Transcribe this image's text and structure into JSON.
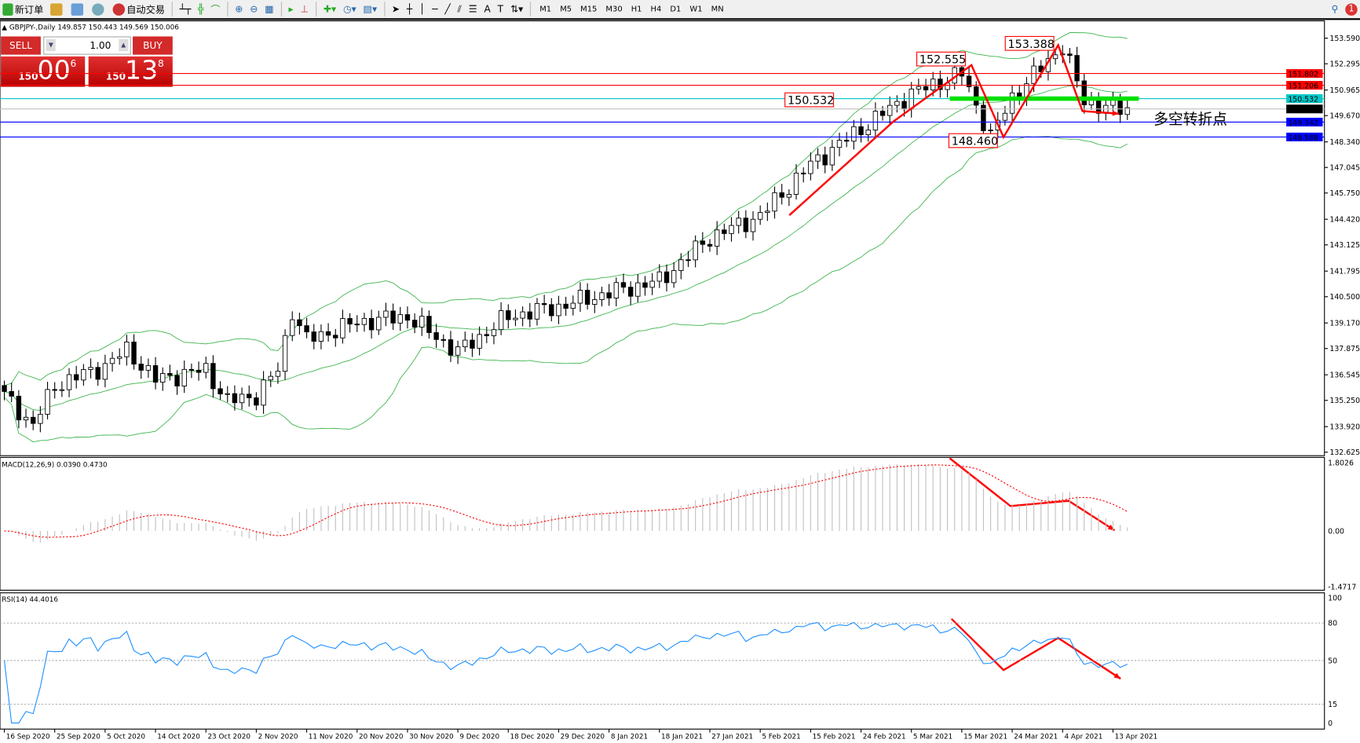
{
  "toolbar": {
    "new_order": "新订单",
    "auto_trading": "自动交易",
    "timeframes": [
      "M1",
      "M5",
      "M15",
      "M30",
      "H1",
      "H4",
      "D1",
      "W1",
      "MN"
    ],
    "notification_count": "1"
  },
  "chart": {
    "title": "GBPJPY-,Daily  149.857 150.443 149.569 150.006",
    "symbol": "GBPJPY-",
    "period": "Daily",
    "ohlc": {
      "open": "149.857",
      "high": "150.443",
      "low": "149.569",
      "close": "150.006"
    }
  },
  "trade_panel": {
    "sell_label": "SELL",
    "buy_label": "BUY",
    "lot": "1.00",
    "sell_price": {
      "big": "150",
      "main": "00",
      "pip": "6"
    },
    "buy_price": {
      "big": "150",
      "main": "13",
      "pip": "8"
    },
    "color": "#d32a2a"
  },
  "price_axis": {
    "ticks": [
      "153.590",
      "152.295",
      "150.965",
      "149.670",
      "148.340",
      "147.045",
      "145.750",
      "144.420",
      "143.125",
      "141.795",
      "140.500",
      "139.170",
      "137.875",
      "136.545",
      "135.250",
      "133.920",
      "132.625"
    ],
    "range": [
      132.625,
      153.59
    ]
  },
  "levels": [
    {
      "value": "151.802",
      "color": "#ff0000"
    },
    {
      "value": "151.206",
      "color": "#ff0000"
    },
    {
      "value": "150.532",
      "color": "#00c8c8"
    },
    {
      "value": "150.006",
      "color": "#000000"
    },
    {
      "value": "149.342",
      "color": "#0000ff"
    },
    {
      "value": "148.588",
      "color": "#0000ff"
    }
  ],
  "annotations": {
    "labels": [
      "152.555",
      "153.388",
      "150.532",
      "148.460"
    ],
    "pivot_text": "多空转折点",
    "pivot_color": "#66ff00",
    "arrow_color": "#ff0000"
  },
  "candles": {
    "waypoints": [
      [
        0,
        135.5
      ],
      [
        4,
        134.0
      ],
      [
        7,
        136.0
      ],
      [
        14,
        137.0
      ],
      [
        17,
        137.8
      ],
      [
        21,
        136.3
      ],
      [
        28,
        136.8
      ],
      [
        31,
        135.2
      ],
      [
        35,
        135.5
      ],
      [
        38,
        136.8
      ],
      [
        40,
        139.8
      ],
      [
        42,
        138.3
      ],
      [
        49,
        139.2
      ],
      [
        56,
        139.5
      ],
      [
        63,
        137.7
      ],
      [
        70,
        139.5
      ],
      [
        77,
        140.0
      ],
      [
        84,
        140.7
      ],
      [
        91,
        141.3
      ],
      [
        98,
        143.5
      ],
      [
        105,
        144.6
      ],
      [
        112,
        147.2
      ],
      [
        119,
        149.0
      ],
      [
        126,
        150.8
      ],
      [
        133,
        151.8
      ],
      [
        137,
        148.6
      ],
      [
        140,
        150.6
      ],
      [
        147,
        153.2
      ],
      [
        150,
        150.4
      ],
      [
        154,
        150.0
      ],
      [
        156,
        150.0
      ]
    ],
    "bb_color": "#3cb44b"
  },
  "macd": {
    "label": "MACD(12,26,9) 0.0390 0.4730",
    "ticks": [
      "1.8026",
      "0.00",
      "-1.4717"
    ],
    "signal_color": "#ff0000",
    "hist_color": "#c0c0c0"
  },
  "rsi": {
    "label": "RSI(14) 44.4016",
    "ticks": [
      "100",
      "80",
      "50",
      "15",
      "0"
    ],
    "color": "#1e90ff"
  },
  "dates": [
    "16 Sep 2020",
    "25 Sep 2020",
    "5 Oct 2020",
    "14 Oct 2020",
    "23 Oct 2020",
    "2 Nov 2020",
    "11 Nov 2020",
    "20 Nov 2020",
    "30 Nov 2020",
    "9 Dec 2020",
    "18 Dec 2020",
    "29 Dec 2020",
    "8 Jan 2021",
    "18 Jan 2021",
    "27 Jan 2021",
    "5 Feb 2021",
    "15 Feb 2021",
    "24 Feb 2021",
    "5 Mar 2021",
    "15 Mar 2021",
    "24 Mar 2021",
    "4 Apr 2021",
    "13 Apr 2021"
  ]
}
